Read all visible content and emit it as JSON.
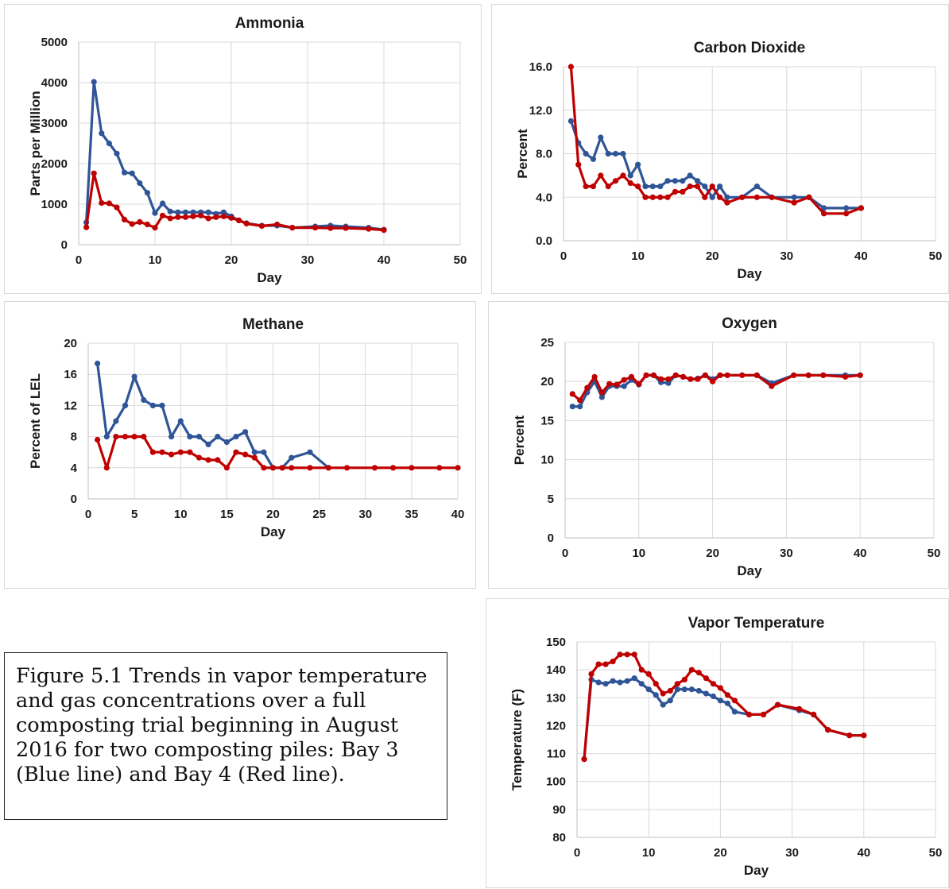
{
  "caption": "Figure 5.1 Trends in vapor temperature and gas concentrations  over a full composting trial beginning in August 2016 for two composting piles: Bay 3 (Blue line) and Bay 4 (Red line).",
  "colors": {
    "bay3": "#2f5597",
    "bay4": "#c00000",
    "grid": "#d9d9d9",
    "axis": "#bfbfbf"
  },
  "chart_data": [
    {
      "id": "ammonia",
      "type": "line",
      "title": "Ammonia",
      "xlabel": "Day",
      "ylabel": "Parts per Million",
      "xlim": [
        0,
        50
      ],
      "xticks": [
        "0",
        "10",
        "20",
        "30",
        "40",
        "50"
      ],
      "xtick_values": [
        0,
        10,
        20,
        30,
        40,
        50
      ],
      "ylim": [
        0,
        5000
      ],
      "yticks": [
        "0",
        "1000",
        "2000",
        "3000",
        "4000",
        "5000"
      ],
      "ytick_values": [
        0,
        1000,
        2000,
        3000,
        4000,
        5000
      ],
      "grid": "vertical and horizontal",
      "legend": "none",
      "series": [
        {
          "color": "bay3",
          "x": [
            1,
            2,
            3,
            4,
            5,
            6,
            7,
            8,
            9,
            10,
            11,
            12,
            13,
            14,
            15,
            16,
            17,
            18,
            19,
            20,
            21,
            22,
            24,
            26,
            28,
            31,
            33,
            35,
            38,
            40
          ],
          "y": [
            550,
            4020,
            2750,
            2500,
            2250,
            1780,
            1760,
            1520,
            1280,
            780,
            1020,
            820,
            800,
            800,
            800,
            800,
            800,
            760,
            800,
            700,
            600,
            530,
            470,
            470,
            420,
            450,
            470,
            450,
            420,
            370
          ]
        },
        {
          "color": "bay4",
          "x": [
            1,
            2,
            3,
            4,
            5,
            6,
            7,
            8,
            9,
            10,
            11,
            12,
            13,
            14,
            15,
            16,
            17,
            18,
            19,
            20,
            21,
            22,
            24,
            26,
            28,
            31,
            33,
            35,
            38,
            40
          ],
          "y": [
            430,
            1760,
            1030,
            1020,
            920,
            620,
            510,
            560,
            500,
            420,
            720,
            650,
            680,
            680,
            700,
            720,
            650,
            680,
            700,
            660,
            600,
            520,
            460,
            500,
            420,
            420,
            410,
            410,
            390,
            360
          ]
        }
      ]
    },
    {
      "id": "co2",
      "type": "line",
      "title": "Carbon Dioxide",
      "xlabel": "Day",
      "ylabel": "Percent",
      "xlim": [
        0,
        50
      ],
      "xticks": [
        "0",
        "10",
        "20",
        "30",
        "40",
        "50"
      ],
      "xtick_values": [
        0,
        10,
        20,
        30,
        40,
        50
      ],
      "ylim": [
        0,
        16
      ],
      "yticks": [
        "0.0",
        "4.0",
        "8.0",
        "12.0",
        "16.0"
      ],
      "ytick_values": [
        0,
        4,
        8,
        12,
        16
      ],
      "grid": "vertical and horizontal",
      "legend": "none",
      "series": [
        {
          "color": "bay3",
          "x": [
            1,
            2,
            3,
            4,
            5,
            6,
            7,
            8,
            9,
            10,
            11,
            12,
            13,
            14,
            15,
            16,
            17,
            18,
            19,
            20,
            21,
            22,
            24,
            26,
            28,
            31,
            33,
            35,
            38,
            40
          ],
          "y": [
            11,
            9,
            8,
            7.5,
            9.5,
            8,
            8,
            8,
            6,
            7,
            5,
            5,
            5,
            5.5,
            5.5,
            5.5,
            6,
            5.5,
            5,
            4,
            5,
            4,
            4,
            5,
            4,
            4,
            4,
            3,
            3,
            3
          ]
        },
        {
          "color": "bay4",
          "x": [
            1,
            2,
            3,
            4,
            5,
            6,
            7,
            8,
            9,
            10,
            11,
            12,
            13,
            14,
            15,
            16,
            17,
            18,
            19,
            20,
            21,
            22,
            24,
            26,
            28,
            31,
            33,
            35,
            38,
            40
          ],
          "y": [
            16,
            7,
            5,
            5,
            6,
            5,
            5.5,
            6,
            5.3,
            5,
            4,
            4,
            4,
            4,
            4.5,
            4.5,
            5,
            5,
            4,
            5,
            4,
            3.5,
            4,
            4,
            4,
            3.5,
            4,
            2.5,
            2.5,
            3
          ]
        }
      ]
    },
    {
      "id": "methane",
      "type": "line",
      "title": "Methane",
      "xlabel": "Day",
      "ylabel": "Percent of LEL",
      "xlim": [
        0,
        40
      ],
      "xticks": [
        "0",
        "5",
        "10",
        "15",
        "20",
        "25",
        "30",
        "35",
        "40"
      ],
      "xtick_values": [
        0,
        5,
        10,
        15,
        20,
        25,
        30,
        35,
        40
      ],
      "ylim": [
        0,
        20
      ],
      "yticks": [
        "0",
        "4",
        "8",
        "12",
        "16",
        "20"
      ],
      "ytick_values": [
        0,
        4,
        8,
        12,
        16,
        20
      ],
      "grid": "vertical and horizontal",
      "legend": "none",
      "series": [
        {
          "color": "bay3",
          "x": [
            1,
            2,
            3,
            4,
            5,
            6,
            7,
            8,
            9,
            10,
            11,
            12,
            13,
            14,
            15,
            16,
            17,
            18,
            19,
            20,
            21,
            22,
            24,
            26
          ],
          "y": [
            17.4,
            8,
            10,
            12,
            15.7,
            12.7,
            12,
            12,
            8,
            10,
            8,
            8,
            7,
            8,
            7.3,
            8,
            8.6,
            6,
            6,
            4,
            4,
            5.3,
            6,
            4
          ]
        },
        {
          "color": "bay4",
          "x": [
            1,
            2,
            3,
            4,
            5,
            6,
            7,
            8,
            9,
            10,
            11,
            12,
            13,
            14,
            15,
            16,
            17,
            18,
            19,
            20,
            21,
            22,
            24,
            26,
            28,
            31,
            33,
            35,
            38,
            40
          ],
          "y": [
            7.6,
            4,
            8,
            8,
            8,
            8,
            6,
            6,
            5.7,
            6,
            6,
            5.3,
            5,
            5,
            4,
            6,
            5.7,
            5.3,
            4,
            4,
            4,
            4,
            4,
            4,
            4,
            4,
            4,
            4,
            4,
            4
          ]
        }
      ]
    },
    {
      "id": "oxygen",
      "type": "line",
      "title": "Oxygen",
      "xlabel": "Day",
      "ylabel": "Percent",
      "xlim": [
        0,
        50
      ],
      "xticks": [
        "0",
        "10",
        "20",
        "30",
        "40",
        "50"
      ],
      "xtick_values": [
        0,
        10,
        20,
        30,
        40,
        50
      ],
      "ylim": [
        0,
        25
      ],
      "yticks": [
        "0",
        "5",
        "10",
        "15",
        "20",
        "25"
      ],
      "ytick_values": [
        0,
        5,
        10,
        15,
        20,
        25
      ],
      "grid": "vertical and horizontal",
      "legend": "none",
      "series": [
        {
          "color": "bay3",
          "x": [
            1,
            2,
            3,
            4,
            5,
            6,
            7,
            8,
            9,
            10,
            11,
            12,
            13,
            14,
            15,
            16,
            17,
            18,
            19,
            20,
            21,
            22,
            24,
            26,
            28,
            31,
            33,
            35,
            38,
            40
          ],
          "y": [
            16.8,
            16.8,
            18.6,
            20,
            18,
            19.4,
            19.4,
            19.4,
            20.2,
            19.6,
            20.8,
            20.8,
            19.9,
            19.8,
            20.8,
            20.6,
            20.3,
            20.4,
            20.8,
            20.3,
            20.8,
            20.8,
            20.8,
            20.8,
            19.8,
            20.8,
            20.8,
            20.8,
            20.8,
            20.8
          ]
        },
        {
          "color": "bay4",
          "x": [
            1,
            2,
            3,
            4,
            5,
            6,
            7,
            8,
            9,
            10,
            11,
            12,
            13,
            14,
            15,
            16,
            17,
            18,
            19,
            20,
            21,
            22,
            24,
            26,
            28,
            31,
            33,
            35,
            38,
            40
          ],
          "y": [
            18.4,
            17.6,
            19.2,
            20.6,
            18.6,
            19.7,
            19.6,
            20.2,
            20.6,
            19.7,
            20.8,
            20.8,
            20.3,
            20.3,
            20.8,
            20.6,
            20.3,
            20.3,
            20.8,
            20.0,
            20.8,
            20.8,
            20.8,
            20.8,
            19.4,
            20.8,
            20.8,
            20.8,
            20.6,
            20.8
          ]
        }
      ]
    },
    {
      "id": "vapor",
      "type": "line",
      "title": "Vapor Temperature",
      "xlabel": "Day",
      "ylabel": "Temperature (F)",
      "xlim": [
        0,
        50
      ],
      "xticks": [
        "0",
        "10",
        "20",
        "30",
        "40",
        "50"
      ],
      "xtick_values": [
        0,
        10,
        20,
        30,
        40,
        50
      ],
      "ylim": [
        80,
        150
      ],
      "yticks": [
        "80",
        "90",
        "100",
        "110",
        "120",
        "130",
        "140",
        "150"
      ],
      "ytick_values": [
        80,
        90,
        100,
        110,
        120,
        130,
        140,
        150
      ],
      "grid": "vertical and horizontal",
      "legend": "none",
      "series": [
        {
          "color": "bay3",
          "x": [
            1,
            2,
            3,
            4,
            5,
            6,
            7,
            8,
            9,
            10,
            11,
            12,
            13,
            14,
            15,
            16,
            17,
            18,
            19,
            20,
            21,
            22,
            24,
            26,
            28,
            31,
            33,
            35,
            38,
            40
          ],
          "y": [
            108,
            136.5,
            135.5,
            135,
            136,
            135.5,
            136,
            137,
            135,
            133,
            131,
            127.5,
            129,
            133,
            133,
            133,
            132.5,
            131.5,
            130.5,
            129,
            128,
            125,
            124,
            124,
            127.5,
            125.5,
            124,
            118.5,
            116.5,
            116.5
          ]
        },
        {
          "color": "bay4",
          "x": [
            1,
            2,
            3,
            4,
            5,
            6,
            7,
            8,
            9,
            10,
            11,
            12,
            13,
            14,
            15,
            16,
            17,
            18,
            19,
            20,
            21,
            22,
            24,
            26,
            28,
            31,
            33,
            35,
            38,
            40
          ],
          "y": [
            108,
            138.5,
            142,
            142,
            143,
            145.5,
            145.5,
            145.5,
            140,
            138.5,
            135,
            131.5,
            132.5,
            135,
            136.5,
            140,
            139,
            137,
            135,
            133.5,
            131,
            129,
            124,
            124,
            127.5,
            126,
            124,
            118.5,
            116.5,
            116.5
          ]
        }
      ]
    }
  ]
}
